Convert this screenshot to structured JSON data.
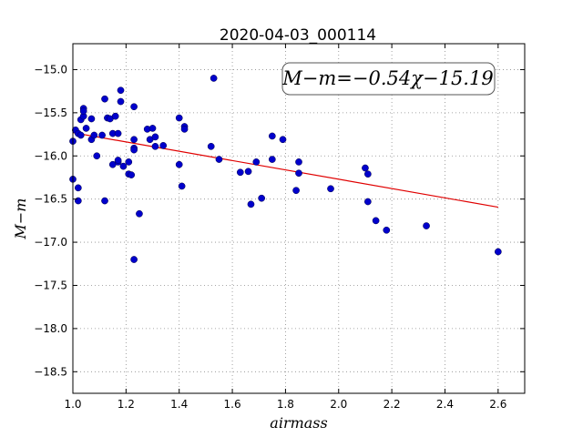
{
  "chart_data": {
    "type": "scatter",
    "title": "2020-04-03_000114",
    "xlabel": "airmass",
    "ylabel": "M−m",
    "xlim": [
      1.0,
      2.7
    ],
    "ylim": [
      -18.75,
      -14.7
    ],
    "xticks": [
      1.0,
      1.2,
      1.4,
      1.6,
      1.8,
      2.0,
      2.2,
      2.4,
      2.6
    ],
    "xtick_labels": [
      "1.0",
      "1.2",
      "1.4",
      "1.6",
      "1.8",
      "2.0",
      "2.2",
      "2.4",
      "2.6"
    ],
    "yticks": [
      -15.0,
      -15.5,
      -16.0,
      -16.5,
      -17.0,
      -17.5,
      -18.0,
      -18.5
    ],
    "ytick_labels": [
      "−15.0",
      "−15.5",
      "−16.0",
      "−16.5",
      "−17.0",
      "−17.5",
      "−18.0",
      "−18.5"
    ],
    "grid": true,
    "annotation": "M−m=−0.54χ−15.19",
    "fit": {
      "slope": -0.54,
      "intercept": -15.19,
      "x_range": [
        1.0,
        2.6
      ],
      "color": "#e00000"
    },
    "point_color": "#0000cc",
    "points": [
      [
        1.0,
        -16.27
      ],
      [
        1.0,
        -15.83
      ],
      [
        1.01,
        -15.7
      ],
      [
        1.02,
        -16.52
      ],
      [
        1.02,
        -16.37
      ],
      [
        1.02,
        -15.74
      ],
      [
        1.03,
        -15.76
      ],
      [
        1.03,
        -15.58
      ],
      [
        1.04,
        -15.54
      ],
      [
        1.04,
        -15.45
      ],
      [
        1.04,
        -15.48
      ],
      [
        1.05,
        -15.68
      ],
      [
        1.07,
        -15.57
      ],
      [
        1.07,
        -15.81
      ],
      [
        1.08,
        -15.76
      ],
      [
        1.09,
        -16.0
      ],
      [
        1.11,
        -15.76
      ],
      [
        1.12,
        -15.34
      ],
      [
        1.12,
        -16.52
      ],
      [
        1.13,
        -15.56
      ],
      [
        1.14,
        -15.57
      ],
      [
        1.15,
        -15.74
      ],
      [
        1.15,
        -16.1
      ],
      [
        1.16,
        -15.54
      ],
      [
        1.17,
        -16.07
      ],
      [
        1.17,
        -16.05
      ],
      [
        1.17,
        -15.74
      ],
      [
        1.18,
        -15.24
      ],
      [
        1.18,
        -15.37
      ],
      [
        1.19,
        -16.12
      ],
      [
        1.21,
        -16.21
      ],
      [
        1.21,
        -16.07
      ],
      [
        1.22,
        -16.22
      ],
      [
        1.23,
        -17.2
      ],
      [
        1.23,
        -15.43
      ],
      [
        1.23,
        -15.81
      ],
      [
        1.23,
        -15.91
      ],
      [
        1.23,
        -15.93
      ],
      [
        1.25,
        -16.67
      ],
      [
        1.28,
        -15.69
      ],
      [
        1.29,
        -15.81
      ],
      [
        1.3,
        -15.68
      ],
      [
        1.31,
        -15.89
      ],
      [
        1.31,
        -15.78
      ],
      [
        1.34,
        -15.88
      ],
      [
        1.4,
        -15.56
      ],
      [
        1.4,
        -16.1
      ],
      [
        1.41,
        -16.35
      ],
      [
        1.42,
        -15.66
      ],
      [
        1.42,
        -15.69
      ],
      [
        1.52,
        -15.89
      ],
      [
        1.53,
        -15.1
      ],
      [
        1.55,
        -16.04
      ],
      [
        1.63,
        -16.19
      ],
      [
        1.66,
        -16.18
      ],
      [
        1.67,
        -16.56
      ],
      [
        1.69,
        -16.07
      ],
      [
        1.71,
        -16.49
      ],
      [
        1.75,
        -15.77
      ],
      [
        1.75,
        -16.04
      ],
      [
        1.79,
        -15.81
      ],
      [
        1.84,
        -16.4
      ],
      [
        1.85,
        -16.07
      ],
      [
        1.85,
        -16.2
      ],
      [
        1.97,
        -16.38
      ],
      [
        2.1,
        -16.14
      ],
      [
        2.11,
        -16.53
      ],
      [
        2.11,
        -16.21
      ],
      [
        2.14,
        -16.75
      ],
      [
        2.18,
        -16.86
      ],
      [
        2.33,
        -16.81
      ],
      [
        2.6,
        -17.11
      ]
    ]
  }
}
